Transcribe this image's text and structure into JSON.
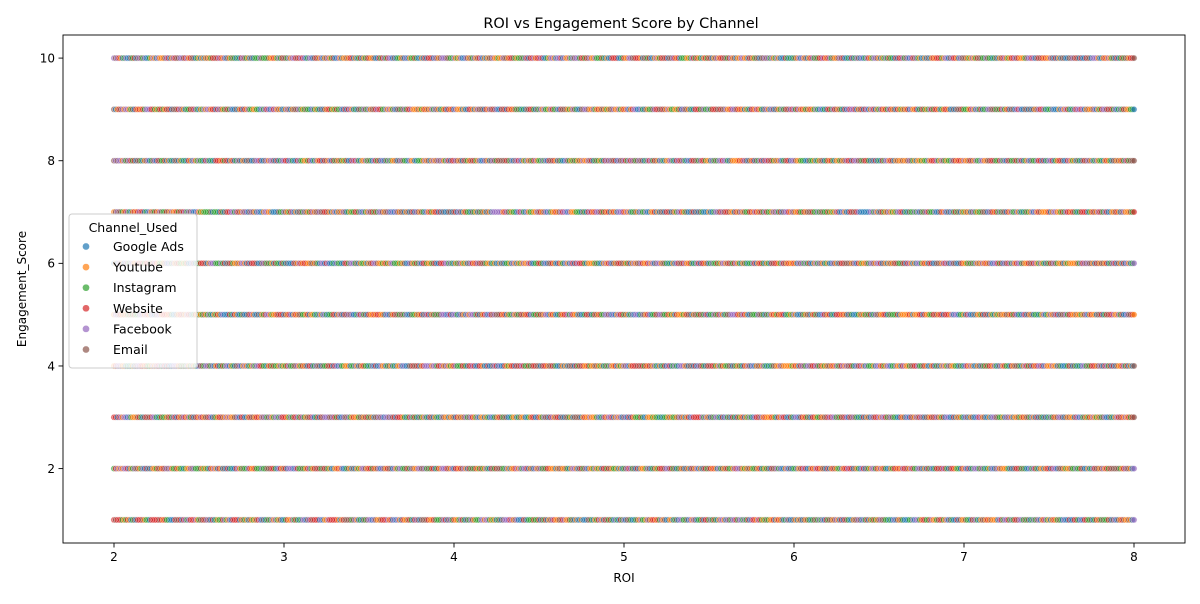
{
  "chart_data": {
    "type": "scatter",
    "title": "ROI vs Engagement Score by Channel",
    "xlabel": "ROI",
    "ylabel": "Engagement_Score",
    "xlim": [
      1.7,
      8.3
    ],
    "ylim": [
      0.55,
      10.45
    ],
    "x_ticks": [
      2,
      3,
      4,
      5,
      6,
      7,
      8
    ],
    "x_tick_labels": [
      "2",
      "3",
      "4",
      "5",
      "6",
      "7",
      "8"
    ],
    "y_ticks": [
      2,
      4,
      6,
      8,
      10
    ],
    "y_tick_labels": [
      "2",
      "4",
      "6",
      "8",
      "10"
    ],
    "grid": false,
    "legend": {
      "title": "Channel_Used",
      "placement": "center-left"
    },
    "series": [
      {
        "name": "Google Ads",
        "color": "#1f77b4"
      },
      {
        "name": "Youtube",
        "color": "#ff7f0e"
      },
      {
        "name": "Instagram",
        "color": "#2ca02c"
      },
      {
        "name": "Website",
        "color": "#d62728"
      },
      {
        "name": "Facebook",
        "color": "#9467bd"
      },
      {
        "name": "Email",
        "color": "#8c564b"
      }
    ],
    "engagement_levels": [
      1,
      2,
      3,
      4,
      5,
      6,
      7,
      8,
      9,
      10
    ],
    "roi_range": [
      2,
      8
    ],
    "roi_step": 0.01,
    "marker_alpha": 0.7
  }
}
